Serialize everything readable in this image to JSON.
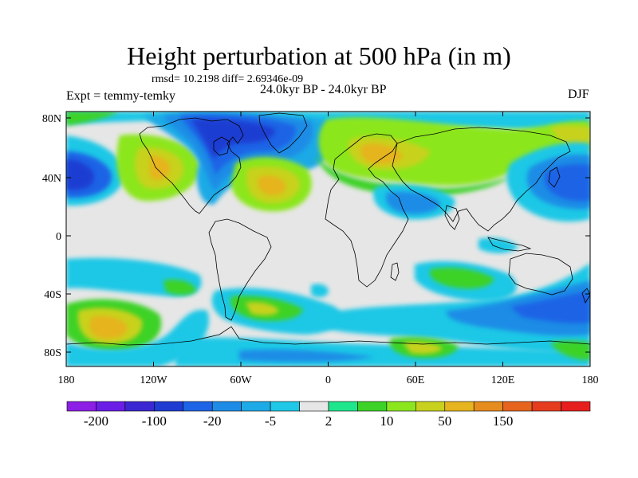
{
  "title": "Height perturbation at 500 hPa (in m)",
  "stats": "rmsd= 10.2198 diff= 2.69346e-09",
  "period": "24.0kyr BP - 24.0kyr BP",
  "experiment": "Expt = temmy-temky",
  "season": "DJF",
  "map": {
    "lat_labels": [
      "80N",
      "40N",
      "0",
      "40S",
      "80S"
    ],
    "lon_labels": [
      "180",
      "120W",
      "60W",
      "0",
      "60E",
      "120E",
      "180"
    ],
    "background_color": "#e6e6e6"
  },
  "colorbar": {
    "colors": [
      "#8c1ee6",
      "#6a1ee6",
      "#3c28d2",
      "#1e3cd2",
      "#1e64e6",
      "#1e8ce6",
      "#1eaae6",
      "#1ec8e6",
      "#e6e6e6",
      "#1ee68c",
      "#3cd228",
      "#8ce61e",
      "#c8d21e",
      "#e6b41e",
      "#e68c1e",
      "#e6641e",
      "#e63c1e",
      "#e61e1e"
    ],
    "labels": [
      "-200",
      "-100",
      "-20",
      "-5",
      "2",
      "10",
      "50",
      "150"
    ]
  }
}
